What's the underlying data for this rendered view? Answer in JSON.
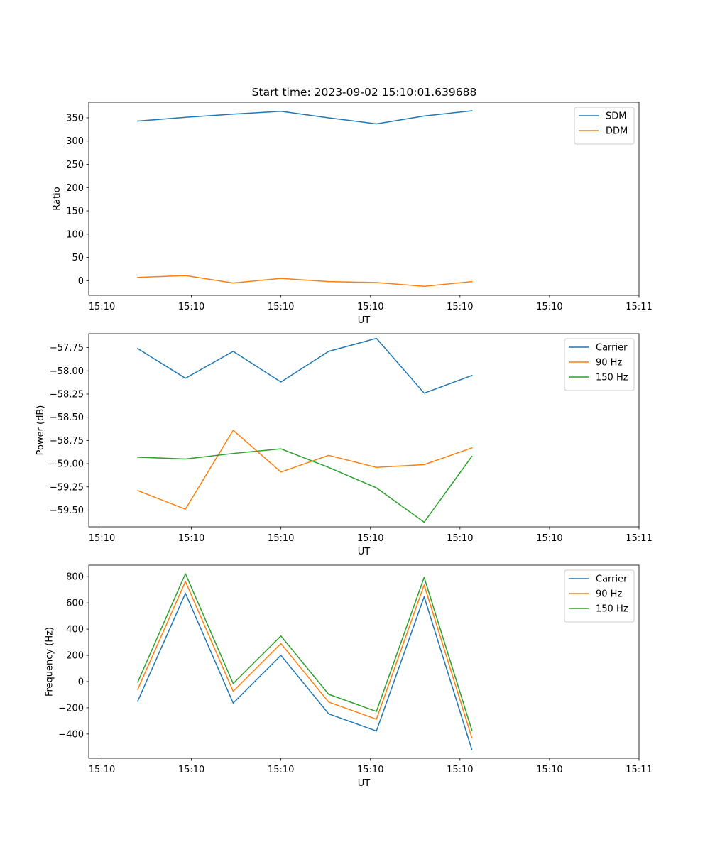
{
  "title": "Start time: 2023-09-02 15:10:01.639688",
  "chart_data": [
    {
      "type": "line",
      "title": "Start time: 2023-09-02 15:10:01.639688",
      "xlabel": "UT",
      "ylabel": "Ratio",
      "x": [
        0.6,
        1.4,
        2.2,
        3.0,
        3.8,
        4.6,
        5.4,
        6.2
      ],
      "xlim": [
        -0.22,
        9.0
      ],
      "xticks": [
        0,
        1.5,
        3.0,
        4.5,
        6.0,
        7.5,
        9.0
      ],
      "xtick_labels": [
        "15:10",
        "15:10",
        "15:10",
        "15:10",
        "15:10",
        "15:10",
        "15:11"
      ],
      "ylim": [
        -31.5,
        383.5
      ],
      "yticks": [
        0,
        50,
        100,
        150,
        200,
        250,
        300,
        350
      ],
      "ytick_labels": [
        "0",
        "50",
        "100",
        "150",
        "200",
        "250",
        "300",
        "350"
      ],
      "legend_position": "top-right",
      "grid": false,
      "series": [
        {
          "name": "SDM",
          "color": "#1f77b4",
          "values": [
            343,
            351,
            358,
            364,
            350,
            337,
            354,
            365
          ]
        },
        {
          "name": "DDM",
          "color": "#ff7f0e",
          "values": [
            7,
            11,
            -5,
            5,
            -2,
            -4,
            -12,
            -2
          ]
        }
      ]
    },
    {
      "type": "line",
      "xlabel": "UT",
      "ylabel": "Power (dB)",
      "x": [
        0.6,
        1.4,
        2.2,
        3.0,
        3.8,
        4.6,
        5.4,
        6.2
      ],
      "xlim": [
        -0.22,
        9.0
      ],
      "xticks": [
        0,
        1.5,
        3.0,
        4.5,
        6.0,
        7.5,
        9.0
      ],
      "xtick_labels": [
        "15:10",
        "15:10",
        "15:10",
        "15:10",
        "15:10",
        "15:10",
        "15:11"
      ],
      "ylim": [
        -59.68,
        -57.6
      ],
      "yticks": [
        -59.5,
        -59.25,
        -59.0,
        -58.75,
        -58.5,
        -58.25,
        -58.0,
        -57.75
      ],
      "ytick_labels": [
        "−59.50",
        "−59.25",
        "−59.00",
        "−58.75",
        "−58.50",
        "−58.25",
        "−58.00",
        "−57.75"
      ],
      "legend_position": "top-right",
      "grid": false,
      "series": [
        {
          "name": "Carrier",
          "color": "#1f77b4",
          "values": [
            -57.76,
            -58.08,
            -57.79,
            -58.12,
            -57.79,
            -57.65,
            -58.24,
            -58.05
          ]
        },
        {
          "name": "90 Hz",
          "color": "#ff7f0e",
          "values": [
            -59.29,
            -59.49,
            -58.64,
            -59.09,
            -58.91,
            -59.04,
            -59.01,
            -58.83
          ]
        },
        {
          "name": "150 Hz",
          "color": "#2ca02c",
          "values": [
            -58.93,
            -58.95,
            -58.89,
            -58.84,
            -59.04,
            -59.26,
            -59.63,
            -58.92
          ]
        }
      ]
    },
    {
      "type": "line",
      "xlabel": "UT",
      "ylabel": "Frequency (Hz)",
      "x": [
        0.6,
        1.4,
        2.2,
        3.0,
        3.8,
        4.6,
        5.4,
        6.2
      ],
      "xlim": [
        -0.22,
        9.0
      ],
      "xticks": [
        0,
        1.5,
        3.0,
        4.5,
        6.0,
        7.5,
        9.0
      ],
      "xtick_labels": [
        "15:10",
        "15:10",
        "15:10",
        "15:10",
        "15:10",
        "15:10",
        "15:11"
      ],
      "ylim": [
        -585,
        888
      ],
      "yticks": [
        -400,
        -200,
        0,
        200,
        400,
        600,
        800
      ],
      "ytick_labels": [
        "−400",
        "−200",
        "0",
        "200",
        "400",
        "600",
        "800"
      ],
      "legend_position": "top-right",
      "grid": false,
      "series": [
        {
          "name": "Carrier",
          "color": "#1f77b4",
          "values": [
            -150,
            673,
            -164,
            200,
            -246,
            -377,
            647,
            -520
          ]
        },
        {
          "name": "90 Hz",
          "color": "#ff7f0e",
          "values": [
            -60,
            763,
            -74,
            290,
            -156,
            -287,
            737,
            -430
          ]
        },
        {
          "name": "150 Hz",
          "color": "#2ca02c",
          "values": [
            -5,
            823,
            -15,
            348,
            -97,
            -228,
            795,
            -372
          ]
        }
      ]
    }
  ]
}
